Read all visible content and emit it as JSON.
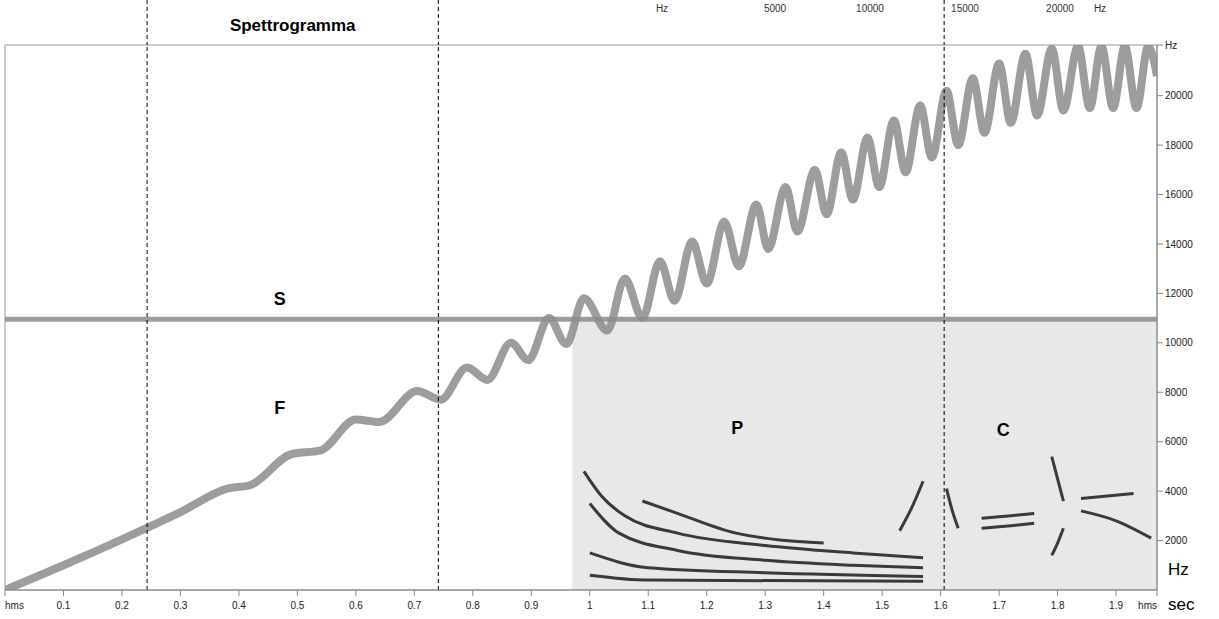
{
  "chart_data": {
    "type": "line",
    "title": "Spettrogramma",
    "xlabel": "sec",
    "ylabel": "Hz",
    "xlim": [
      0,
      1.97
    ],
    "ylim": [
      0,
      22050
    ],
    "xticks": [
      {
        "value": 0,
        "label": "hms"
      },
      0.1,
      0.2,
      0.3,
      0.4,
      0.5,
      0.6,
      0.7,
      0.8,
      0.9,
      1.0,
      1.1,
      1.2,
      1.3,
      1.4,
      1.5,
      1.6,
      1.7,
      1.8,
      1.9,
      {
        "value": 1.97,
        "label": "hms"
      }
    ],
    "yticks": [
      2000,
      4000,
      6000,
      8000,
      10000,
      12000,
      14000,
      16000,
      18000,
      20000,
      {
        "value": 22050,
        "label": "Hz"
      }
    ],
    "top_scale": {
      "unit": "Hz",
      "ticks": [
        5000,
        10000,
        15000,
        20000
      ]
    },
    "vlines": [
      0.243,
      0.741,
      1.606
    ],
    "shaded_region": {
      "x": [
        0.97,
        1.97
      ],
      "y": [
        0,
        10950
      ],
      "color": "#e8e8e8"
    },
    "series": [
      {
        "name": "S",
        "color": "#8c8c8c",
        "label": {
          "x": 0.47,
          "y": 11800
        },
        "x": [
          0,
          1.97
        ],
        "values": [
          10950,
          10950
        ]
      },
      {
        "name": "F",
        "color": "#8c8c8c",
        "label": {
          "x": 0.47,
          "y": 7370
        },
        "x": [
          0,
          0.1,
          0.2,
          0.3,
          0.38,
          0.42,
          0.49,
          0.54,
          0.6,
          0.64,
          0.705,
          0.745,
          0.79,
          0.825,
          0.865,
          0.895,
          0.93,
          0.96,
          0.99,
          1.03,
          1.06,
          1.09,
          1.12,
          1.145,
          1.175,
          1.2,
          1.23,
          1.255,
          1.285,
          1.305,
          1.335,
          1.355,
          1.385,
          1.405,
          1.43,
          1.45,
          1.475,
          1.495,
          1.52,
          1.54,
          1.565,
          1.585,
          1.61,
          1.63,
          1.655,
          1.675,
          1.7,
          1.72,
          1.745,
          1.765,
          1.79,
          1.81,
          1.835,
          1.855,
          1.875,
          1.895,
          1.915,
          1.935,
          1.955,
          1.97
        ],
        "values": [
          0,
          1000,
          2050,
          3150,
          4100,
          4250,
          5500,
          5650,
          6900,
          6800,
          8050,
          7700,
          9000,
          8500,
          10000,
          9300,
          11000,
          9950,
          11800,
          10500,
          12600,
          11000,
          13300,
          11700,
          14100,
          12400,
          14900,
          13100,
          15600,
          13800,
          16300,
          14500,
          17000,
          15200,
          17700,
          15800,
          18300,
          16300,
          19000,
          16900,
          19600,
          17500,
          20200,
          18000,
          20700,
          18500,
          21300,
          18900,
          21700,
          19200,
          21900,
          19400,
          22000,
          19500,
          22000,
          19500,
          22000,
          19500,
          22000,
          20800
        ]
      },
      {
        "name": "P",
        "color": "#3a3a3a",
        "label": {
          "x": 1.252,
          "y": 6560
        },
        "x": [
          0.99,
          1.02,
          1.06,
          1.15,
          1.3,
          1.45,
          1.57,
          1.0,
          1.0,
          1.05,
          1.15,
          1.3,
          1.45,
          1.57,
          1.0,
          1.0,
          1.1,
          1.3,
          1.57,
          1.09,
          1.09,
          1.15,
          1.25,
          1.4,
          1.0,
          1.0,
          1.1,
          1.57,
          1.53,
          1.53,
          1.55,
          1.57
        ],
        "values": [
          4800,
          3800,
          3000,
          2300,
          1800,
          1500,
          1300,
          null,
          3500,
          2300,
          1600,
          1200,
          1000,
          900,
          null,
          1500,
          900,
          700,
          550,
          null,
          3600,
          3100,
          2300,
          1900,
          null,
          600,
          400,
          350,
          null,
          2400,
          3300,
          4400
        ]
      },
      {
        "name": "C",
        "color": "#3a3a3a",
        "label": {
          "x": 1.707,
          "y": 6480
        },
        "x": [
          1.61,
          1.62,
          1.63,
          1.67,
          1.67,
          1.72,
          1.76,
          1.67,
          1.67,
          1.72,
          1.76,
          1.79,
          1.79,
          1.8,
          1.81,
          1.79,
          1.79,
          1.8,
          1.81,
          1.84,
          1.84,
          1.93,
          1.84,
          1.84,
          1.9,
          1.96
        ],
        "values": [
          4100,
          3200,
          2500,
          null,
          2900,
          3000,
          3100,
          null,
          2500,
          2600,
          2700,
          null,
          5400,
          4500,
          3600,
          null,
          1400,
          1900,
          2500,
          null,
          3700,
          3900,
          null,
          3200,
          2800,
          2100
        ]
      }
    ]
  }
}
